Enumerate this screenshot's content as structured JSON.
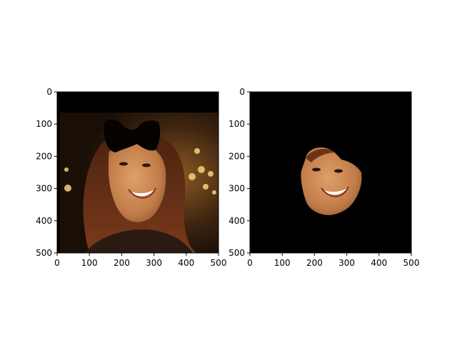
{
  "chart_data": [
    {
      "type": "image",
      "title": "",
      "xlabel": "",
      "ylabel": "",
      "xlim": [
        0,
        500
      ],
      "ylim": [
        500,
        0
      ],
      "xticks": [
        "0",
        "100",
        "200",
        "300",
        "400",
        "500"
      ],
      "yticks": [
        "0",
        "100",
        "200",
        "300",
        "400",
        "500"
      ],
      "content": "face photo with black mask over hair region",
      "colors": {
        "background": "#000000",
        "skin": "#c98a55",
        "hair": "#6b3318",
        "lights": "#f5d27a"
      }
    },
    {
      "type": "image",
      "title": "",
      "xlabel": "",
      "ylabel": "",
      "xlim": [
        0,
        500
      ],
      "ylim": [
        500,
        0
      ],
      "xticks": [
        "0",
        "100",
        "200",
        "300",
        "400",
        "500"
      ],
      "yticks": [
        "0",
        "100",
        "200",
        "300",
        "400",
        "500"
      ],
      "content": "segmented face region on black background",
      "colors": {
        "background": "#000000",
        "skin": "#c98a55"
      }
    }
  ]
}
